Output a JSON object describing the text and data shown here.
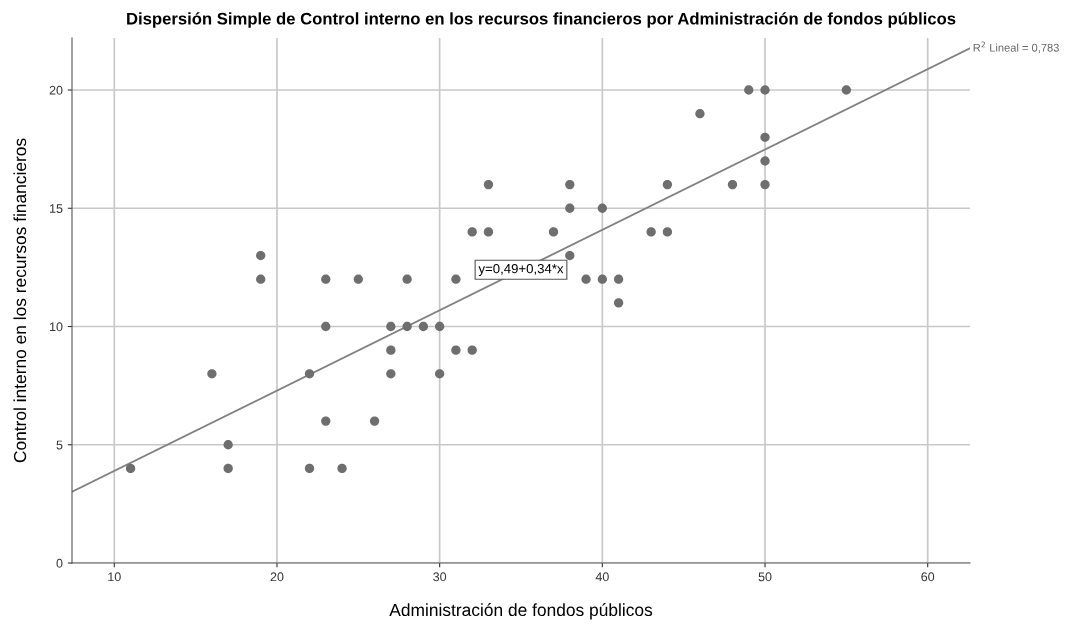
{
  "chart_data": {
    "type": "scatter",
    "title": "Dispersión Simple de Control interno en los recursos financieros por Administración de fondos públicos",
    "xlabel": "Administración de fondos públicos",
    "ylabel": "Control interno en los recursos financieros",
    "series": [
      {
        "color": "#6e6e6e",
        "marker": "circle",
        "x": [
          11,
          16,
          17,
          17,
          19,
          19,
          22,
          22,
          23,
          23,
          23,
          24,
          25,
          26,
          27,
          27,
          27,
          28,
          28,
          29,
          30,
          30,
          31,
          31,
          32,
          32,
          33,
          33,
          37,
          38,
          38,
          38,
          39,
          40,
          40,
          41,
          41,
          43,
          44,
          44,
          46,
          48,
          49,
          50,
          50,
          50,
          50,
          55
        ],
        "values": [
          4,
          8,
          5,
          4,
          13,
          12,
          8,
          4,
          12,
          10,
          6,
          4,
          12,
          6,
          10,
          9,
          8,
          12,
          10,
          10,
          10,
          8,
          12,
          9,
          14,
          9,
          16,
          14,
          14,
          16,
          15,
          13,
          12,
          15,
          12,
          12,
          11,
          14,
          16,
          14,
          19,
          16,
          20,
          20,
          18,
          17,
          16,
          20
        ]
      },
      {
        "type": "line",
        "color": "#808080",
        "marker": "none",
        "line_style": "solid",
        "x": [
          7.4,
          62.6
        ],
        "values": [
          3.01,
          21.77
        ]
      }
    ],
    "annotations": [
      {
        "text": "y=0,49+0,34*x",
        "x": 35,
        "y": 12.4
      },
      {
        "text": "R$^{2}$ Lineal = 0,783",
        "x": 62.6,
        "y": 21.77
      }
    ],
    "xlim": [
      7.4,
      62.6
    ],
    "ylim": [
      0,
      22.2
    ],
    "xticks": [
      10,
      20,
      30,
      40,
      50,
      60
    ],
    "yticks": [
      0,
      5,
      10,
      15,
      20
    ],
    "grid": true
  }
}
